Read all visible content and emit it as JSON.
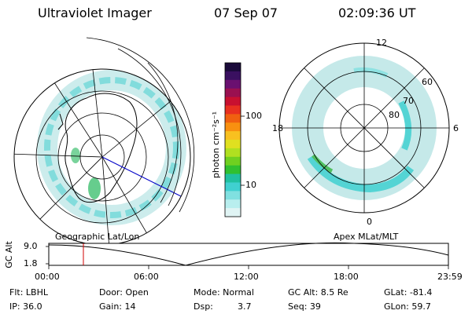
{
  "header": {
    "instrument": "Ultraviolet Imager",
    "date": "07 Sep 07",
    "time": "02:09:36 UT"
  },
  "colorbar": {
    "unit_label": "photon cm⁻²s⁻¹",
    "ticks": [
      "100",
      "10"
    ],
    "colors": [
      "#1a0a3a",
      "#3a1060",
      "#6a1070",
      "#9a1050",
      "#c81030",
      "#e83020",
      "#f06010",
      "#f89010",
      "#f8c020",
      "#e0e020",
      "#b0e020",
      "#70d020",
      "#30c030",
      "#20c0a0",
      "#40d0d0",
      "#80e0e0",
      "#b8eeee",
      "#e0f4f4"
    ]
  },
  "left_map": {
    "label": "Geographic Lat/Lon"
  },
  "right_map": {
    "label": "Apex  MLat/MLT",
    "mlt_labels": [
      "12",
      "18",
      "6",
      "0"
    ],
    "lat_labels": [
      "60",
      "70",
      "80"
    ]
  },
  "altitude_plot": {
    "ylabel": "GC Alt",
    "yticks": [
      "9.0",
      "1.8"
    ],
    "xticks": [
      "00:00",
      "06:00",
      "12:00",
      "18:00",
      "23:59"
    ]
  },
  "footer": {
    "flt": "Flt: LBHL",
    "ip": "IP: 36.0",
    "door": "Door: Open",
    "gain": "Gain: 14",
    "mode": "Mode: Normal",
    "dsp_label": "Dsp:",
    "dsp_value": "3.7",
    "gc_alt": "GC Alt: 8.5 Re",
    "seq": "Seq: 39",
    "glat": "GLat: -81.4",
    "glon": "GLon: 59.7"
  }
}
